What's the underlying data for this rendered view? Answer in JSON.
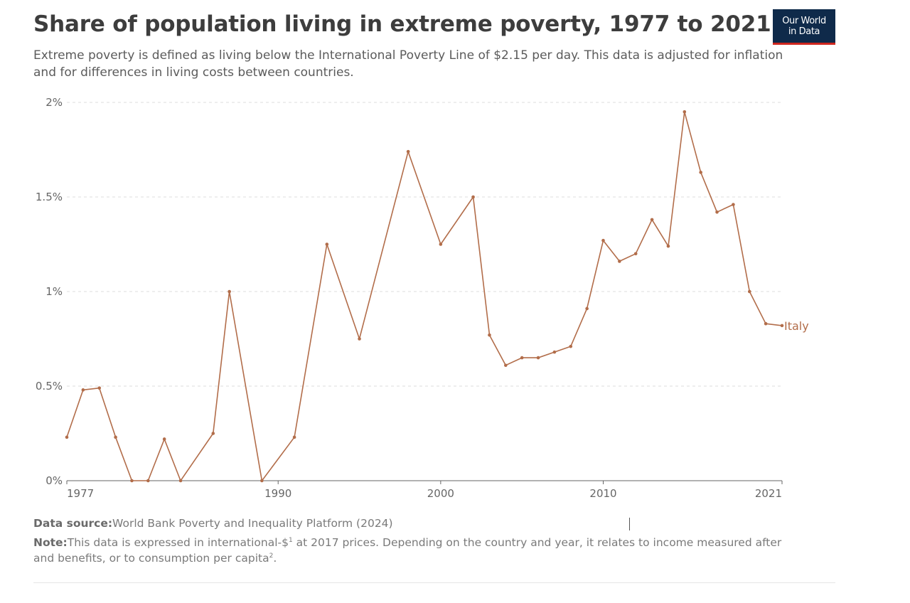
{
  "header": {
    "title": "Share of population living in extreme poverty, 1977 to 2021",
    "subtitle": "Extreme poverty is defined as living below the International Poverty Line of $2.15 per day. This data is adjusted for inflation and for differences in living costs between countries.",
    "logo_line1": "Our World",
    "logo_line2": "in Data"
  },
  "colors": {
    "series": "#b26d4a",
    "grid": "#dddddd",
    "axis": "#666666",
    "tick_text": "#666666",
    "logo_bg": "#0f2a4a",
    "logo_accent": "#ce261e"
  },
  "chart_data": {
    "type": "line",
    "title": "Share of population living in extreme poverty, 1977 to 2021",
    "xlabel": "",
    "ylabel": "",
    "xlim": [
      1977,
      2021
    ],
    "ylim": [
      0,
      2
    ],
    "x_ticks": [
      1977,
      1990,
      2000,
      2010,
      2021
    ],
    "x_tick_labels": [
      "1977",
      "1990",
      "2000",
      "2010",
      "2021"
    ],
    "y_ticks": [
      0,
      0.5,
      1,
      1.5,
      2
    ],
    "y_tick_labels": [
      "0%",
      "0.5%",
      "1%",
      "1.5%",
      "2%"
    ],
    "grid": "horizontal dashed",
    "legend": "inline label at line end",
    "series": [
      {
        "name": "Italy",
        "color": "#b26d4a",
        "x": [
          1977,
          1978,
          1979,
          1980,
          1981,
          1982,
          1983,
          1984,
          1986,
          1987,
          1989,
          1991,
          1993,
          1995,
          1998,
          2000,
          2002,
          2003,
          2004,
          2005,
          2006,
          2007,
          2008,
          2009,
          2010,
          2011,
          2012,
          2013,
          2014,
          2015,
          2016,
          2017,
          2018,
          2019,
          2020,
          2021
        ],
        "values": [
          0.23,
          0.48,
          0.49,
          0.23,
          0.0,
          0.0,
          0.22,
          0.0,
          0.25,
          1.0,
          0.0,
          0.23,
          1.25,
          0.75,
          1.74,
          1.25,
          1.5,
          0.77,
          0.61,
          0.65,
          0.65,
          0.68,
          0.71,
          0.91,
          1.27,
          1.16,
          1.2,
          1.38,
          1.24,
          1.95,
          1.63,
          1.42,
          1.46,
          1.0,
          0.83,
          0.82
        ]
      }
    ]
  },
  "footer": {
    "source_label": "Data source:",
    "source_text": "World Bank Poverty and Inequality Platform (2024)",
    "note_label": "Note:",
    "note_text_a": "This data is expressed in ",
    "note_link": "international-$",
    "note_sup1": "1",
    "note_text_b": " at 2017 prices. Depending on the country and year, it relates to income measured after",
    "note_line2_a": "and benefits, or to consumption ",
    "note_line2_link": "per capita",
    "note_sup2": "2",
    "note_line2_b": "."
  }
}
